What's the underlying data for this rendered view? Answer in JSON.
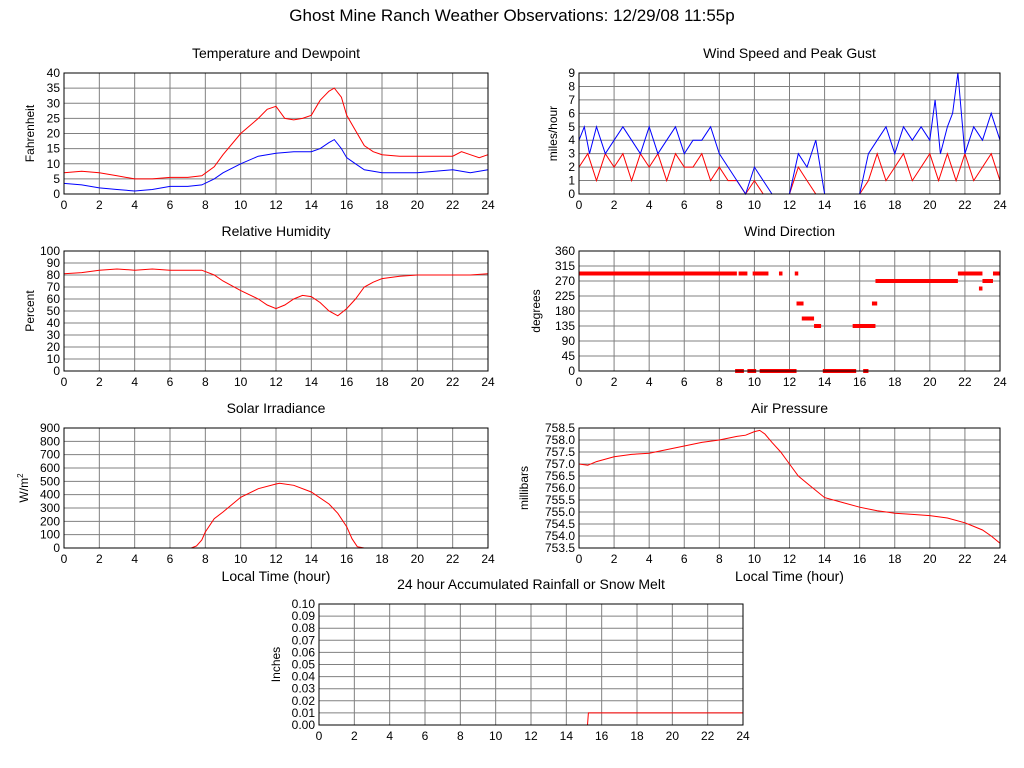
{
  "page": {
    "title": "Ghost Mine Ranch Weather Observations: 12/29/08 11:55p"
  },
  "colors": {
    "red": "#ff0000",
    "blue": "#0000ff",
    "grid": "#808080",
    "frame": "#000000"
  },
  "chart_data": [
    {
      "id": "temp",
      "type": "line",
      "title": "Temperature and Dewpoint",
      "xlabel": "",
      "ylabel": "Fahrenheit",
      "xlim": [
        0,
        24
      ],
      "ylim": [
        0,
        40
      ],
      "xticks": [
        "0",
        "2",
        "4",
        "6",
        "8",
        "10",
        "12",
        "14",
        "16",
        "18",
        "20",
        "22",
        "24"
      ],
      "yticks": [
        "0",
        "5",
        "10",
        "15",
        "20",
        "25",
        "30",
        "35",
        "40"
      ],
      "series": [
        {
          "color": "#ff0000",
          "x": [
            0,
            1,
            2,
            3,
            4,
            5,
            6,
            7,
            7.8,
            8.5,
            9,
            10,
            11,
            11.5,
            12,
            12.5,
            13,
            13.5,
            14,
            14.5,
            15,
            15.3,
            15.7,
            16,
            16.5,
            17,
            17.5,
            18,
            19,
            20,
            21,
            22,
            22.5,
            23,
            23.5,
            24
          ],
          "y": [
            7,
            7.5,
            7,
            6,
            5,
            5,
            5.5,
            5.5,
            6,
            9,
            13,
            20,
            25,
            28,
            29,
            25,
            24.5,
            25,
            26,
            31,
            34,
            35,
            32,
            26,
            21,
            16,
            14,
            13,
            12.5,
            12.5,
            12.5,
            12.5,
            14,
            13,
            12,
            13
          ]
        },
        {
          "color": "#0000ff",
          "x": [
            0,
            1,
            2,
            3,
            4,
            5,
            6,
            7,
            7.8,
            8.5,
            9,
            10,
            11,
            12,
            13,
            14,
            14.5,
            15,
            15.3,
            15.7,
            16,
            16.5,
            17,
            17.5,
            18,
            19,
            20,
            21,
            22,
            23,
            24
          ],
          "y": [
            3.5,
            3,
            2,
            1.5,
            1,
            1.5,
            2.5,
            2.5,
            3,
            5,
            7,
            10,
            12.5,
            13.5,
            14,
            14,
            15,
            17,
            18,
            15,
            12,
            10,
            8,
            7.5,
            7,
            7,
            7,
            7.5,
            8,
            7,
            8
          ]
        }
      ]
    },
    {
      "id": "wind",
      "type": "line",
      "title": "Wind Speed and Peak Gust",
      "xlabel": "",
      "ylabel": "miles/hour",
      "xlim": [
        0,
        24
      ],
      "ylim": [
        0,
        9
      ],
      "xticks": [
        "0",
        "2",
        "4",
        "6",
        "8",
        "10",
        "12",
        "14",
        "16",
        "18",
        "20",
        "22",
        "24"
      ],
      "yticks": [
        "0",
        "1",
        "2",
        "3",
        "4",
        "5",
        "6",
        "7",
        "8",
        "9"
      ],
      "series": [
        {
          "color": "#ff0000",
          "x": [
            0,
            0.5,
            1,
            1.5,
            2,
            2.5,
            3,
            3.5,
            4,
            4.5,
            5,
            5.5,
            6,
            6.5,
            7,
            7.5,
            8,
            8.5,
            9,
            9.5,
            10,
            10.5,
            11,
            12,
            12.5,
            13,
            13.5,
            14,
            15,
            16,
            16.5,
            17,
            17.5,
            18,
            18.5,
            19,
            19.5,
            20,
            20.5,
            21,
            21.5,
            22,
            22.5,
            23,
            23.5,
            24
          ],
          "y": [
            2,
            3,
            1,
            3,
            2,
            3,
            1,
            3,
            2,
            3,
            1,
            3,
            2,
            2,
            3,
            1,
            2,
            1,
            1,
            0,
            1,
            0,
            0,
            0,
            2,
            1,
            0,
            0,
            0,
            0,
            1,
            3,
            1,
            2,
            3,
            1,
            2,
            3,
            1,
            3,
            1,
            3,
            1,
            2,
            3,
            1
          ]
        },
        {
          "color": "#0000ff",
          "x": [
            0,
            0.3,
            0.6,
            1,
            1.5,
            2,
            2.5,
            3,
            3.5,
            4,
            4.5,
            5,
            5.5,
            6,
            6.5,
            7,
            7.5,
            8,
            8.5,
            9,
            9.5,
            10,
            10.5,
            11,
            12,
            12.5,
            13,
            13.5,
            14,
            15,
            16,
            16.5,
            17,
            17.5,
            18,
            18.5,
            19,
            19.5,
            20,
            20.3,
            20.6,
            21,
            21.3,
            21.6,
            22,
            22.5,
            23,
            23.5,
            24
          ],
          "y": [
            4,
            5,
            3,
            5,
            3,
            4,
            5,
            4,
            3,
            5,
            3,
            4,
            5,
            3,
            4,
            4,
            5,
            3,
            2,
            1,
            0,
            2,
            1,
            0,
            0,
            3,
            2,
            4,
            0,
            0,
            0,
            3,
            4,
            5,
            3,
            5,
            4,
            5,
            4,
            7,
            3,
            5,
            6,
            9,
            3,
            5,
            4,
            6,
            4
          ]
        }
      ]
    },
    {
      "id": "rh",
      "type": "line",
      "title": "Relative Humidity",
      "xlabel": "",
      "ylabel": "Percent",
      "xlim": [
        0,
        24
      ],
      "ylim": [
        0,
        100
      ],
      "xticks": [
        "0",
        "2",
        "4",
        "6",
        "8",
        "10",
        "12",
        "14",
        "16",
        "18",
        "20",
        "22",
        "24"
      ],
      "yticks": [
        "0",
        "10",
        "20",
        "30",
        "40",
        "50",
        "60",
        "70",
        "80",
        "90",
        "100"
      ],
      "series": [
        {
          "color": "#ff0000",
          "x": [
            0,
            1,
            2,
            3,
            4,
            5,
            6,
            7,
            7.8,
            8.5,
            9,
            10,
            11,
            11.5,
            12,
            12.5,
            13,
            13.5,
            14,
            14.5,
            15,
            15.5,
            16,
            16.5,
            17,
            17.5,
            18,
            19,
            20,
            21,
            22,
            23,
            24
          ],
          "y": [
            81,
            82,
            84,
            85,
            84,
            85,
            84,
            84,
            84,
            80,
            75,
            67,
            60,
            55,
            52,
            55,
            60,
            63,
            62,
            57,
            50,
            46,
            52,
            60,
            70,
            74,
            77,
            79,
            80,
            80,
            80,
            80,
            81
          ]
        }
      ]
    },
    {
      "id": "dir",
      "type": "scatter",
      "title": "Wind Direction",
      "xlabel": "",
      "ylabel": "degrees",
      "xlim": [
        0,
        24
      ],
      "ylim": [
        0,
        360
      ],
      "xticks": [
        "0",
        "2",
        "4",
        "6",
        "8",
        "10",
        "12",
        "14",
        "16",
        "18",
        "20",
        "22",
        "24"
      ],
      "yticks": [
        "0",
        "45",
        "90",
        "135",
        "180",
        "225",
        "270",
        "315",
        "360"
      ],
      "segments": [
        {
          "x": [
            0,
            9.0
          ],
          "y": 292.5
        },
        {
          "x": [
            9.1,
            9.6
          ],
          "y": 292.5
        },
        {
          "x": [
            9.9,
            10.8
          ],
          "y": 292.5
        },
        {
          "x": [
            11.4,
            11.6
          ],
          "y": 292.5
        },
        {
          "x": [
            12.3,
            12.5
          ],
          "y": 292.5
        },
        {
          "x": [
            8.9,
            9.4
          ],
          "y": 0
        },
        {
          "x": [
            9.6,
            10.1
          ],
          "y": 0
        },
        {
          "x": [
            10.3,
            12.4
          ],
          "y": 0
        },
        {
          "x": [
            12.4,
            12.8
          ],
          "y": 202.5
        },
        {
          "x": [
            12.7,
            13.4
          ],
          "y": 157.5
        },
        {
          "x": [
            13.4,
            13.8
          ],
          "y": 135
        },
        {
          "x": [
            13.9,
            15.8
          ],
          "y": 0
        },
        {
          "x": [
            15.6,
            16.9
          ],
          "y": 135
        },
        {
          "x": [
            16.2,
            16.5
          ],
          "y": 0
        },
        {
          "x": [
            16.7,
            17.0
          ],
          "y": 202.5
        },
        {
          "x": [
            16.9,
            21.6
          ],
          "y": 270
        },
        {
          "x": [
            21.6,
            23.0
          ],
          "y": 292.5
        },
        {
          "x": [
            22.8,
            23.0
          ],
          "y": 247.5
        },
        {
          "x": [
            23.0,
            23.6
          ],
          "y": 270
        },
        {
          "x": [
            23.6,
            24.0
          ],
          "y": 292.5
        }
      ]
    },
    {
      "id": "solar",
      "type": "line",
      "title": "Solar Irradiance",
      "xlabel": "Local Time (hour)",
      "ylabel": "W/m",
      "ylabel_sup": "2",
      "xlim": [
        0,
        24
      ],
      "ylim": [
        0,
        900
      ],
      "xticks": [
        "0",
        "2",
        "4",
        "6",
        "8",
        "10",
        "12",
        "14",
        "16",
        "18",
        "20",
        "22",
        "24"
      ],
      "yticks": [
        "0",
        "100",
        "200",
        "300",
        "400",
        "500",
        "600",
        "700",
        "800",
        "900"
      ],
      "series": [
        {
          "color": "#ff0000",
          "x": [
            0,
            7.2,
            7.5,
            7.8,
            8,
            8.5,
            9,
            10,
            11,
            12,
            12.2,
            13,
            14,
            15,
            15.5,
            16,
            16.3,
            16.6,
            17,
            24
          ],
          "y": [
            0,
            0,
            15,
            60,
            120,
            220,
            270,
            380,
            445,
            480,
            485,
            470,
            420,
            330,
            260,
            160,
            70,
            10,
            0,
            0
          ]
        }
      ]
    },
    {
      "id": "pressure",
      "type": "line",
      "title": "Air Pressure",
      "xlabel": "Local Time (hour)",
      "ylabel": "millibars",
      "xlim": [
        0,
        24
      ],
      "ylim": [
        753.5,
        758.5
      ],
      "xticks": [
        "0",
        "2",
        "4",
        "6",
        "8",
        "10",
        "12",
        "14",
        "16",
        "18",
        "20",
        "22",
        "24"
      ],
      "yticks": [
        "753.5",
        "754.0",
        "754.5",
        "755.0",
        "755.5",
        "756.0",
        "756.5",
        "757.0",
        "757.5",
        "758.0",
        "758.5"
      ],
      "series": [
        {
          "color": "#ff0000",
          "x": [
            0,
            0.5,
            1,
            2,
            3,
            4,
            5,
            6,
            7,
            8,
            9,
            9.5,
            10,
            10.3,
            10.6,
            11,
            11.5,
            12,
            12.5,
            13,
            14,
            15,
            16,
            17,
            18,
            19,
            20,
            21,
            22,
            22.5,
            23,
            23.5,
            24
          ],
          "y": [
            757.0,
            756.95,
            757.1,
            757.3,
            757.4,
            757.45,
            757.6,
            757.75,
            757.9,
            758.0,
            758.15,
            758.2,
            758.35,
            758.4,
            758.25,
            757.9,
            757.5,
            757.0,
            756.5,
            756.2,
            755.6,
            755.4,
            755.2,
            755.05,
            754.95,
            754.9,
            754.85,
            754.75,
            754.55,
            754.4,
            754.25,
            754.0,
            753.7
          ]
        }
      ]
    },
    {
      "id": "rain",
      "type": "line",
      "title": "24 hour Accumulated Rainfall or Snow Melt",
      "xlabel": "",
      "ylabel": "Inches",
      "xlim": [
        0,
        24
      ],
      "ylim": [
        0,
        0.1
      ],
      "xticks": [
        "0",
        "2",
        "4",
        "6",
        "8",
        "10",
        "12",
        "14",
        "16",
        "18",
        "20",
        "22",
        "24"
      ],
      "yticks": [
        "0.00",
        "0.01",
        "0.02",
        "0.03",
        "0.04",
        "0.05",
        "0.06",
        "0.07",
        "0.08",
        "0.09",
        "0.10"
      ],
      "series": [
        {
          "color": "#ff0000",
          "x": [
            0,
            15.2,
            15.25,
            24
          ],
          "y": [
            0,
            0,
            0.01,
            0.01
          ]
        }
      ]
    }
  ]
}
